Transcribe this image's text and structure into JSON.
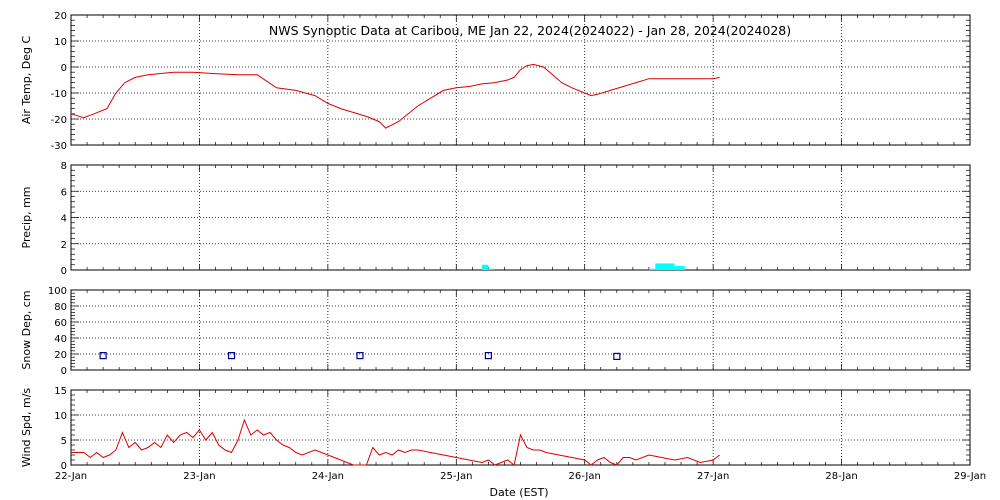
{
  "title": "NWS Synoptic Data at Caribou, ME   Jan 22, 2024(2024022) - Jan 28, 2024(2024028)",
  "x_axis": {
    "label": "Date (EST)",
    "ticks": [
      "22-Jan",
      "23-Jan",
      "24-Jan",
      "25-Jan",
      "26-Jan",
      "27-Jan",
      "28-Jan",
      "29-Jan"
    ]
  },
  "colors": {
    "temperature": "#dd0000",
    "precip": "#00ffff",
    "snow_depth": "#000099",
    "wind": "#dd0000",
    "grid": "#000000"
  },
  "chart_data": [
    {
      "type": "line",
      "ylabel": "Air Temp, Deg C",
      "ylim": [
        -30,
        20
      ],
      "yticks": [
        "20",
        "10",
        "0",
        "-10",
        "-20",
        "-30"
      ],
      "x_unit": "days since Jan 22, 2024 00:00 EST",
      "x": [
        0,
        0.1,
        0.18,
        0.28,
        0.35,
        0.42,
        0.5,
        0.6,
        0.7,
        0.8,
        0.95,
        1.1,
        1.3,
        1.45,
        1.6,
        1.75,
        1.9,
        2.0,
        2.1,
        2.2,
        2.3,
        2.4,
        2.45,
        2.55,
        2.7,
        2.8,
        2.9,
        3.0,
        3.1,
        3.2,
        3.3,
        3.4,
        3.45,
        3.5,
        3.55,
        3.6,
        3.68,
        3.75,
        3.82,
        3.9,
        4.0,
        4.05,
        4.1,
        4.2,
        4.3,
        4.4,
        4.5,
        4.6,
        4.7,
        4.8,
        4.9,
        5.0,
        5.05
      ],
      "values": [
        -18,
        -19.5,
        -18,
        -16,
        -10,
        -6,
        -4,
        -3,
        -2.5,
        -2,
        -2,
        -2.5,
        -3,
        -3,
        -8,
        -9,
        -11,
        -14,
        -16,
        -17.5,
        -19,
        -21,
        -23.5,
        -21,
        -15,
        -12,
        -9,
        -8,
        -7.5,
        -6.5,
        -6,
        -5,
        -4,
        -1,
        0.5,
        1,
        0,
        -3,
        -6,
        -8,
        -10,
        -11,
        -10.5,
        -9,
        -7.5,
        -6,
        -4.5,
        -4.5,
        -4.5,
        -4.5,
        -4.5,
        -4.5,
        -4
      ]
    },
    {
      "type": "bar",
      "ylabel": "Precip, mm",
      "ylim": [
        0,
        8
      ],
      "yticks": [
        "8",
        "6",
        "4",
        "2",
        "0"
      ],
      "x_unit": "days since Jan 22, 2024 00:00 EST",
      "x": [
        3.2,
        3.25,
        4.5,
        4.55,
        4.6,
        4.7
      ],
      "width": [
        0.05,
        0.04,
        0.05,
        0.05,
        0.1,
        0.08
      ],
      "values": [
        0.4,
        0.1,
        0.1,
        0.5,
        0.5,
        0.3
      ]
    },
    {
      "type": "scatter",
      "ylabel": "Snow Dep, cm",
      "ylim": [
        0,
        100
      ],
      "yticks": [
        "100",
        "80",
        "60",
        "40",
        "20",
        "0"
      ],
      "x_unit": "days since Jan 22, 2024 00:00 EST",
      "x": [
        0.25,
        1.25,
        2.25,
        3.25,
        4.25
      ],
      "values": [
        18,
        18,
        18,
        18,
        17
      ]
    },
    {
      "type": "line",
      "ylabel": "Wind Spd, m/s",
      "ylim": [
        0,
        15
      ],
      "yticks": [
        "15",
        "10",
        "5",
        "0"
      ],
      "x_unit": "days since Jan 22, 2024 00:00 EST",
      "x": [
        0,
        0.1,
        0.15,
        0.2,
        0.25,
        0.3,
        0.35,
        0.4,
        0.45,
        0.5,
        0.55,
        0.6,
        0.65,
        0.7,
        0.75,
        0.8,
        0.85,
        0.9,
        0.95,
        1.0,
        1.05,
        1.1,
        1.15,
        1.2,
        1.25,
        1.3,
        1.35,
        1.4,
        1.45,
        1.5,
        1.55,
        1.6,
        1.65,
        1.7,
        1.75,
        1.8,
        1.9,
        2.0,
        2.1,
        2.15,
        2.2,
        2.3,
        2.35,
        2.4,
        2.45,
        2.5,
        2.55,
        2.6,
        2.65,
        2.7,
        2.8,
        2.9,
        3.0,
        3.1,
        3.2,
        3.25,
        3.3,
        3.35,
        3.4,
        3.45,
        3.5,
        3.55,
        3.6,
        3.65,
        3.7,
        3.8,
        3.9,
        4.0,
        4.05,
        4.1,
        4.15,
        4.2,
        4.25,
        4.3,
        4.35,
        4.4,
        4.5,
        4.6,
        4.7,
        4.8,
        4.9,
        5.0,
        5.05
      ],
      "values": [
        2.5,
        2.5,
        1.5,
        2.5,
        1.5,
        2.0,
        3.0,
        6.5,
        3.5,
        4.5,
        3.0,
        3.5,
        4.5,
        3.5,
        6.0,
        4.5,
        6.0,
        6.5,
        5.5,
        7.0,
        5.0,
        6.5,
        4.0,
        3.0,
        2.5,
        5.0,
        9.0,
        6.0,
        7.0,
        6.0,
        6.5,
        5.0,
        4.0,
        3.5,
        2.5,
        2.0,
        3.0,
        2.0,
        1.0,
        0.5,
        0.0,
        0.0,
        3.5,
        2.0,
        2.5,
        2.0,
        3.0,
        2.5,
        3.0,
        3.0,
        2.5,
        2.0,
        1.5,
        1.0,
        0.5,
        1.0,
        0.0,
        0.5,
        1.0,
        0.0,
        6.0,
        3.5,
        3.0,
        3.0,
        2.5,
        2.0,
        1.5,
        1.0,
        0.0,
        1.0,
        1.5,
        0.5,
        0.0,
        1.5,
        1.5,
        1.0,
        2.0,
        1.5,
        1.0,
        1.5,
        0.5,
        1.0,
        2.0
      ]
    }
  ]
}
